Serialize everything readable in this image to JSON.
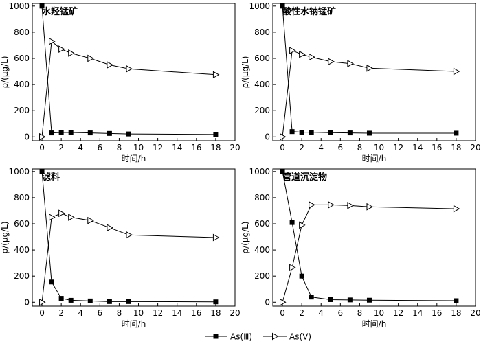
{
  "legend": {
    "position": "bottom-center",
    "entries": [
      {
        "label": "As(Ⅲ)",
        "marker": "filled-square"
      },
      {
        "label": "As(Ⅴ)",
        "marker": "open-triangle-right"
      }
    ]
  },
  "colors": {
    "line": "#000000",
    "axes": "#000000",
    "background": "#ffffff"
  },
  "chart_data": [
    {
      "type": "line",
      "title": "水羟锰矿",
      "xlabel": "时间/h",
      "ylabel": "ρ/(μg/L)",
      "xlim": [
        -1,
        20
      ],
      "ylim": [
        -30,
        1020
      ],
      "xticks": [
        0,
        2,
        4,
        6,
        8,
        10,
        12,
        14,
        16,
        18,
        20
      ],
      "yticks": [
        0,
        200,
        400,
        600,
        800,
        1000
      ],
      "x": [
        0,
        1,
        2,
        3,
        5,
        7,
        9,
        18
      ],
      "series": [
        {
          "name": "As(Ⅲ)",
          "values": [
            1000,
            30,
            33,
            33,
            30,
            26,
            22,
            18
          ]
        },
        {
          "name": "As(Ⅴ)",
          "values": [
            0,
            730,
            670,
            640,
            600,
            550,
            520,
            475
          ]
        }
      ]
    },
    {
      "type": "line",
      "title": "酸性水钠锰矿",
      "xlabel": "时间/h",
      "ylabel": "ρ/(μg/L)",
      "xlim": [
        -1,
        20
      ],
      "ylim": [
        -30,
        1020
      ],
      "xticks": [
        0,
        2,
        4,
        6,
        8,
        10,
        12,
        14,
        16,
        18,
        20
      ],
      "yticks": [
        0,
        200,
        400,
        600,
        800,
        1000
      ],
      "x": [
        0,
        1,
        2,
        3,
        5,
        7,
        9,
        18
      ],
      "series": [
        {
          "name": "As(Ⅲ)",
          "values": [
            1000,
            40,
            35,
            35,
            32,
            30,
            28,
            28
          ]
        },
        {
          "name": "As(Ⅴ)",
          "values": [
            0,
            660,
            630,
            610,
            575,
            560,
            525,
            500
          ]
        }
      ]
    },
    {
      "type": "line",
      "title": "滤料",
      "xlabel": "时间/h",
      "ylabel": "ρ/(μg/L)",
      "xlim": [
        -1,
        20
      ],
      "ylim": [
        -30,
        1020
      ],
      "xticks": [
        0,
        2,
        4,
        6,
        8,
        10,
        12,
        14,
        16,
        18,
        20
      ],
      "yticks": [
        0,
        200,
        400,
        600,
        800,
        1000
      ],
      "x": [
        0,
        1,
        2,
        3,
        5,
        7,
        9,
        18
      ],
      "series": [
        {
          "name": "As(Ⅲ)",
          "values": [
            1000,
            155,
            30,
            15,
            10,
            5,
            5,
            3
          ]
        },
        {
          "name": "As(Ⅴ)",
          "values": [
            0,
            650,
            680,
            650,
            625,
            570,
            515,
            495
          ]
        }
      ]
    },
    {
      "type": "line",
      "title": "管道沉淀物",
      "xlabel": "时间/h",
      "ylabel": "ρ/(μg/L)",
      "xlim": [
        -1,
        20
      ],
      "ylim": [
        -30,
        1020
      ],
      "xticks": [
        0,
        2,
        4,
        6,
        8,
        10,
        12,
        14,
        16,
        18,
        20
      ],
      "yticks": [
        0,
        200,
        400,
        600,
        800,
        1000
      ],
      "x": [
        0,
        1,
        2,
        3,
        5,
        7,
        9,
        18
      ],
      "series": [
        {
          "name": "As(Ⅲ)",
          "values": [
            1000,
            610,
            200,
            40,
            20,
            18,
            16,
            12
          ]
        },
        {
          "name": "As(Ⅴ)",
          "values": [
            0,
            265,
            590,
            745,
            745,
            740,
            730,
            715
          ]
        }
      ]
    }
  ]
}
